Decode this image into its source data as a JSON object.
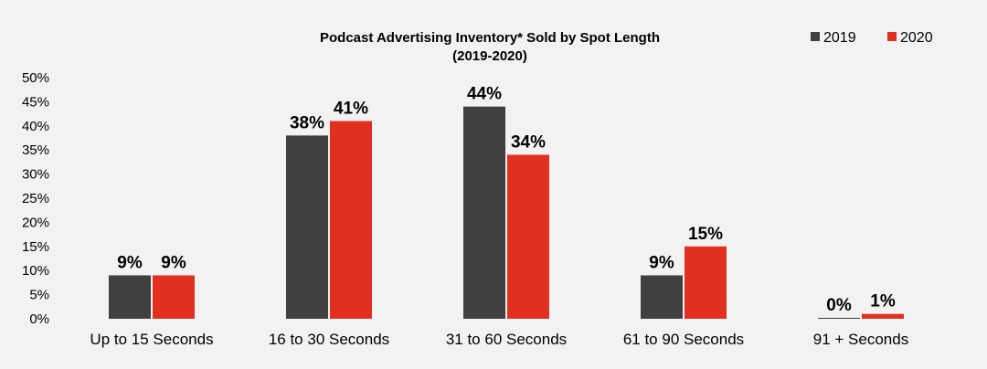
{
  "chart_data": {
    "type": "bar",
    "title": "Podcast Advertising Inventory* Sold by Spot Length",
    "subtitle": "(2019-2020)",
    "categories": [
      "Up to 15 Seconds",
      "16 to 30 Seconds",
      "31 to 60 Seconds",
      "61 to 90 Seconds",
      "91 + Seconds"
    ],
    "series": [
      {
        "name": "2019",
        "color": "#404040",
        "values": [
          9,
          38,
          44,
          9,
          0
        ],
        "labels": [
          "9%",
          "38%",
          "44%",
          "9%",
          "0%"
        ]
      },
      {
        "name": "2020",
        "color": "#e03020",
        "values": [
          9,
          41,
          34,
          15,
          1
        ],
        "labels": [
          "9%",
          "41%",
          "34%",
          "15%",
          "1%"
        ]
      }
    ],
    "y_ticks": [
      "0%",
      "5%",
      "10%",
      "15%",
      "20%",
      "25%",
      "30%",
      "35%",
      "40%",
      "45%",
      "50%"
    ],
    "ylim": [
      0,
      50
    ],
    "xlabel": "",
    "ylabel": "",
    "grid": false,
    "legend_position": "top-right"
  }
}
